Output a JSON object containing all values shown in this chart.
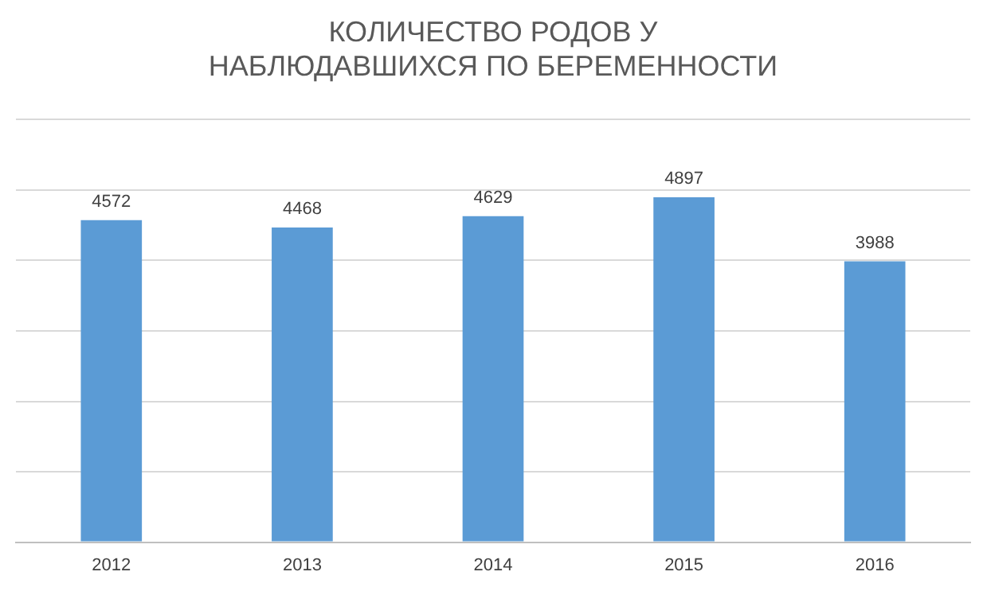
{
  "chart_data": {
    "type": "bar",
    "title": "КОЛИЧЕСТВО РОДОВ У\nНАБЛЮДАВШИХСЯ ПО БЕРЕМЕННОСТИ",
    "categories": [
      "2012",
      "2013",
      "2014",
      "2015",
      "2016"
    ],
    "values": [
      4572,
      4468,
      4629,
      4897,
      3988
    ],
    "color": "#5b9bd5",
    "ylim": [
      0,
      6000
    ],
    "yticks": [
      {
        "value": 0,
        "label": null
      },
      {
        "value": 1000,
        "label": null
      },
      {
        "value": 2000,
        "label": null
      },
      {
        "value": 3000,
        "label": null
      },
      {
        "value": 4000,
        "label": null
      },
      {
        "value": 5000,
        "label": null
      },
      {
        "value": 6000,
        "label": null
      }
    ],
    "grid": "y",
    "tick_labels": "x",
    "data_labels": true,
    "legend": false
  }
}
